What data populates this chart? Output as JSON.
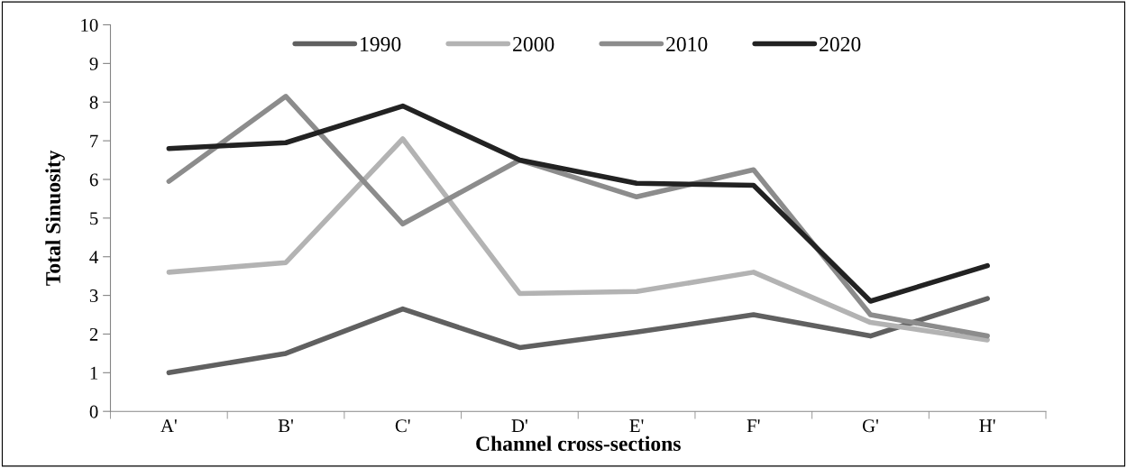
{
  "chart_data": {
    "type": "line",
    "xlabel": "Channel cross-sections",
    "ylabel": "Total Sinuosity",
    "categories": [
      "A'",
      "B'",
      "C'",
      "D'",
      "E'",
      "F'",
      "G'",
      "H'"
    ],
    "series": [
      {
        "name": "1990",
        "color": "#606060",
        "values": [
          1.0,
          1.5,
          2.65,
          1.65,
          2.05,
          2.5,
          1.95,
          2.92
        ]
      },
      {
        "name": "2000",
        "color": "#b3b3b3",
        "values": [
          3.6,
          3.85,
          7.05,
          3.05,
          3.1,
          3.6,
          2.3,
          1.85
        ]
      },
      {
        "name": "2010",
        "color": "#8c8c8c",
        "values": [
          5.95,
          8.15,
          4.85,
          6.5,
          5.55,
          6.25,
          2.5,
          1.95
        ]
      },
      {
        "name": "2020",
        "color": "#222222",
        "values": [
          6.8,
          6.95,
          7.9,
          6.5,
          5.9,
          5.85,
          2.85,
          3.77
        ]
      }
    ],
    "ylim": [
      0,
      10
    ],
    "yticks": [
      0,
      1,
      2,
      3,
      4,
      5,
      6,
      7,
      8,
      9,
      10
    ],
    "grid": false,
    "legend": "top",
    "marker": "none",
    "line_style": "solid"
  }
}
